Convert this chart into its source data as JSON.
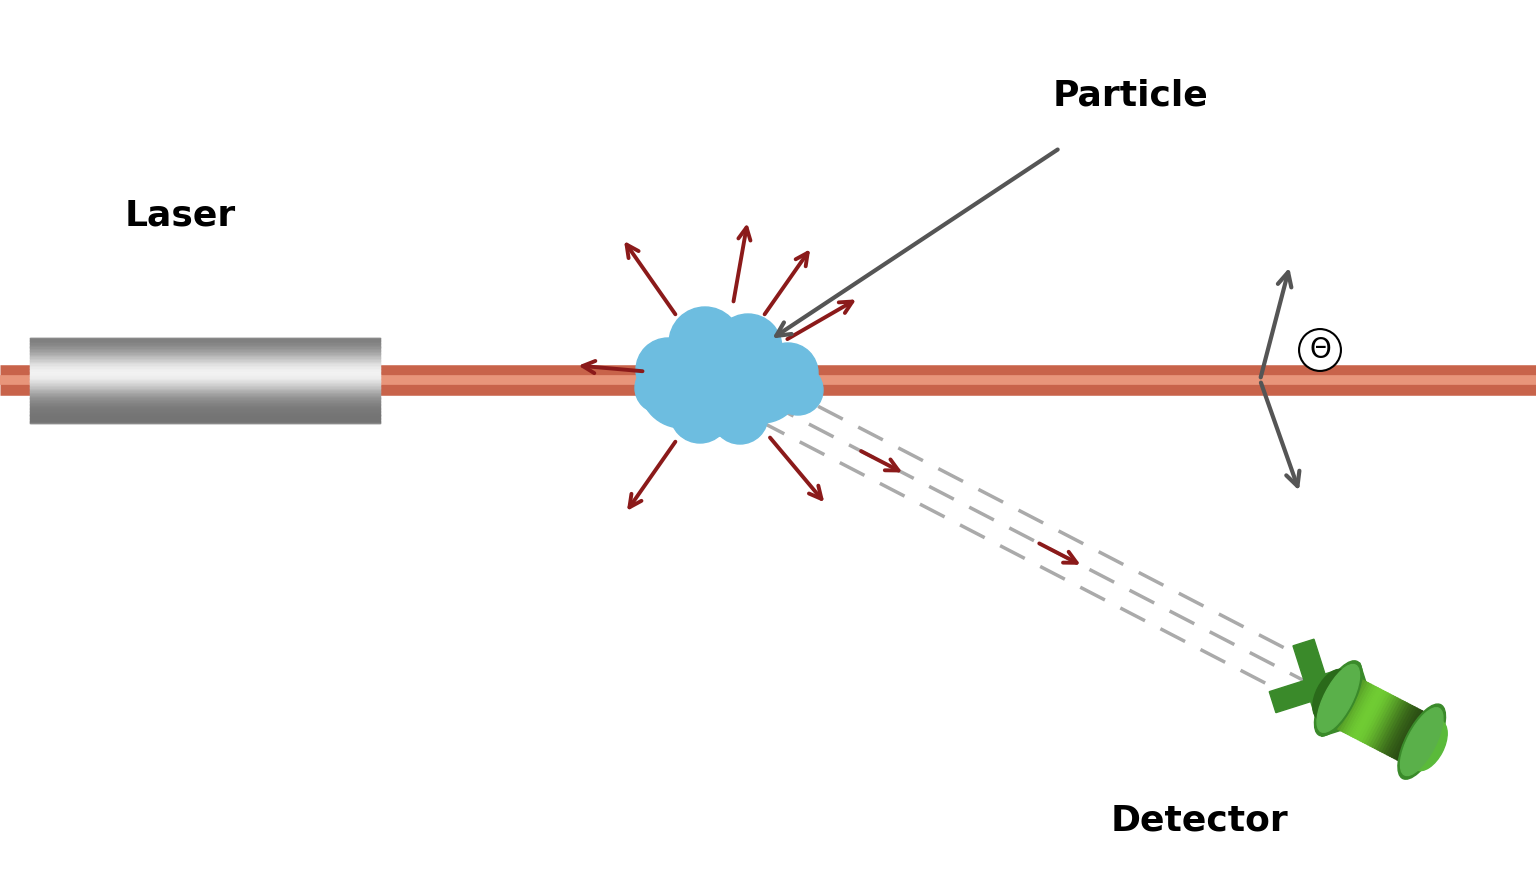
{
  "background_color": "#ffffff",
  "laser_label": "Laser",
  "particle_label": "Particle",
  "detector_label": "Detector",
  "theta_label": "Θ",
  "laser_beam_color": "#c8634a",
  "laser_beam_highlight": "#e8957a",
  "scatter_arrow_color": "#8b1a1a",
  "dashed_line_color": "#aaaaaa",
  "particle_color": "#6dbde0",
  "particle_dark": "#4aa8cc",
  "detector_green": "#4a9e3a",
  "detector_light": "#7acc5a",
  "detector_dark": "#2a6a1a",
  "label_fontsize": 26,
  "theta_fontsize": 20,
  "arrow_lw": 2.8,
  "arrow_ms": 22
}
